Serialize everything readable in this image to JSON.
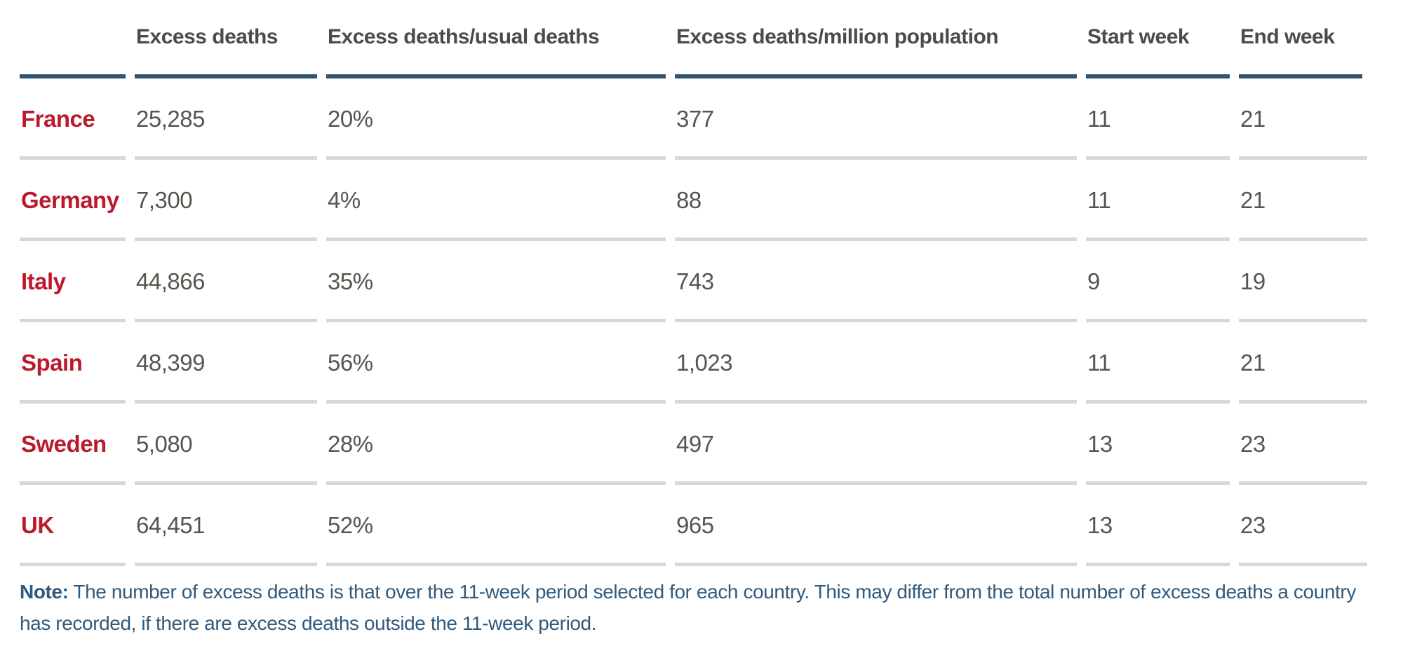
{
  "chart_data": {
    "type": "table",
    "columns": [
      "",
      "Excess deaths",
      "Excess deaths/usual deaths",
      "Excess deaths/million population",
      "Start week",
      "End week"
    ],
    "rows": [
      {
        "country": "France",
        "excess_deaths": "25,285",
        "excess_per_usual": "20%",
        "excess_per_million": "377",
        "start_week": "11",
        "end_week": "21"
      },
      {
        "country": "Germany",
        "excess_deaths": "7,300",
        "excess_per_usual": "4%",
        "excess_per_million": "88",
        "start_week": "11",
        "end_week": "21"
      },
      {
        "country": "Italy",
        "excess_deaths": "44,866",
        "excess_per_usual": "35%",
        "excess_per_million": "743",
        "start_week": "9",
        "end_week": "19"
      },
      {
        "country": "Spain",
        "excess_deaths": "48,399",
        "excess_per_usual": "56%",
        "excess_per_million": "1,023",
        "start_week": "11",
        "end_week": "21"
      },
      {
        "country": "Sweden",
        "excess_deaths": "5,080",
        "excess_per_usual": "28%",
        "excess_per_million": "497",
        "start_week": "13",
        "end_week": "23"
      },
      {
        "country": "UK",
        "excess_deaths": "64,451",
        "excess_per_usual": "52%",
        "excess_per_million": "965",
        "start_week": "13",
        "end_week": "23"
      }
    ],
    "note_label": "Note:",
    "note_text": "The number of excess deaths is that over the 11-week period selected for each country. This may differ from the total number of excess deaths a country has recorded, if there are excess deaths outside the 11-week period."
  },
  "colors": {
    "accent_navy": "#30566f",
    "country_red": "#bb1a2d",
    "divider_gray": "#d8d7d3",
    "header_text": "#4c4b47",
    "body_text": "#57554f",
    "note_text": "#2f5a7d",
    "page_bg": "#ffffff"
  }
}
